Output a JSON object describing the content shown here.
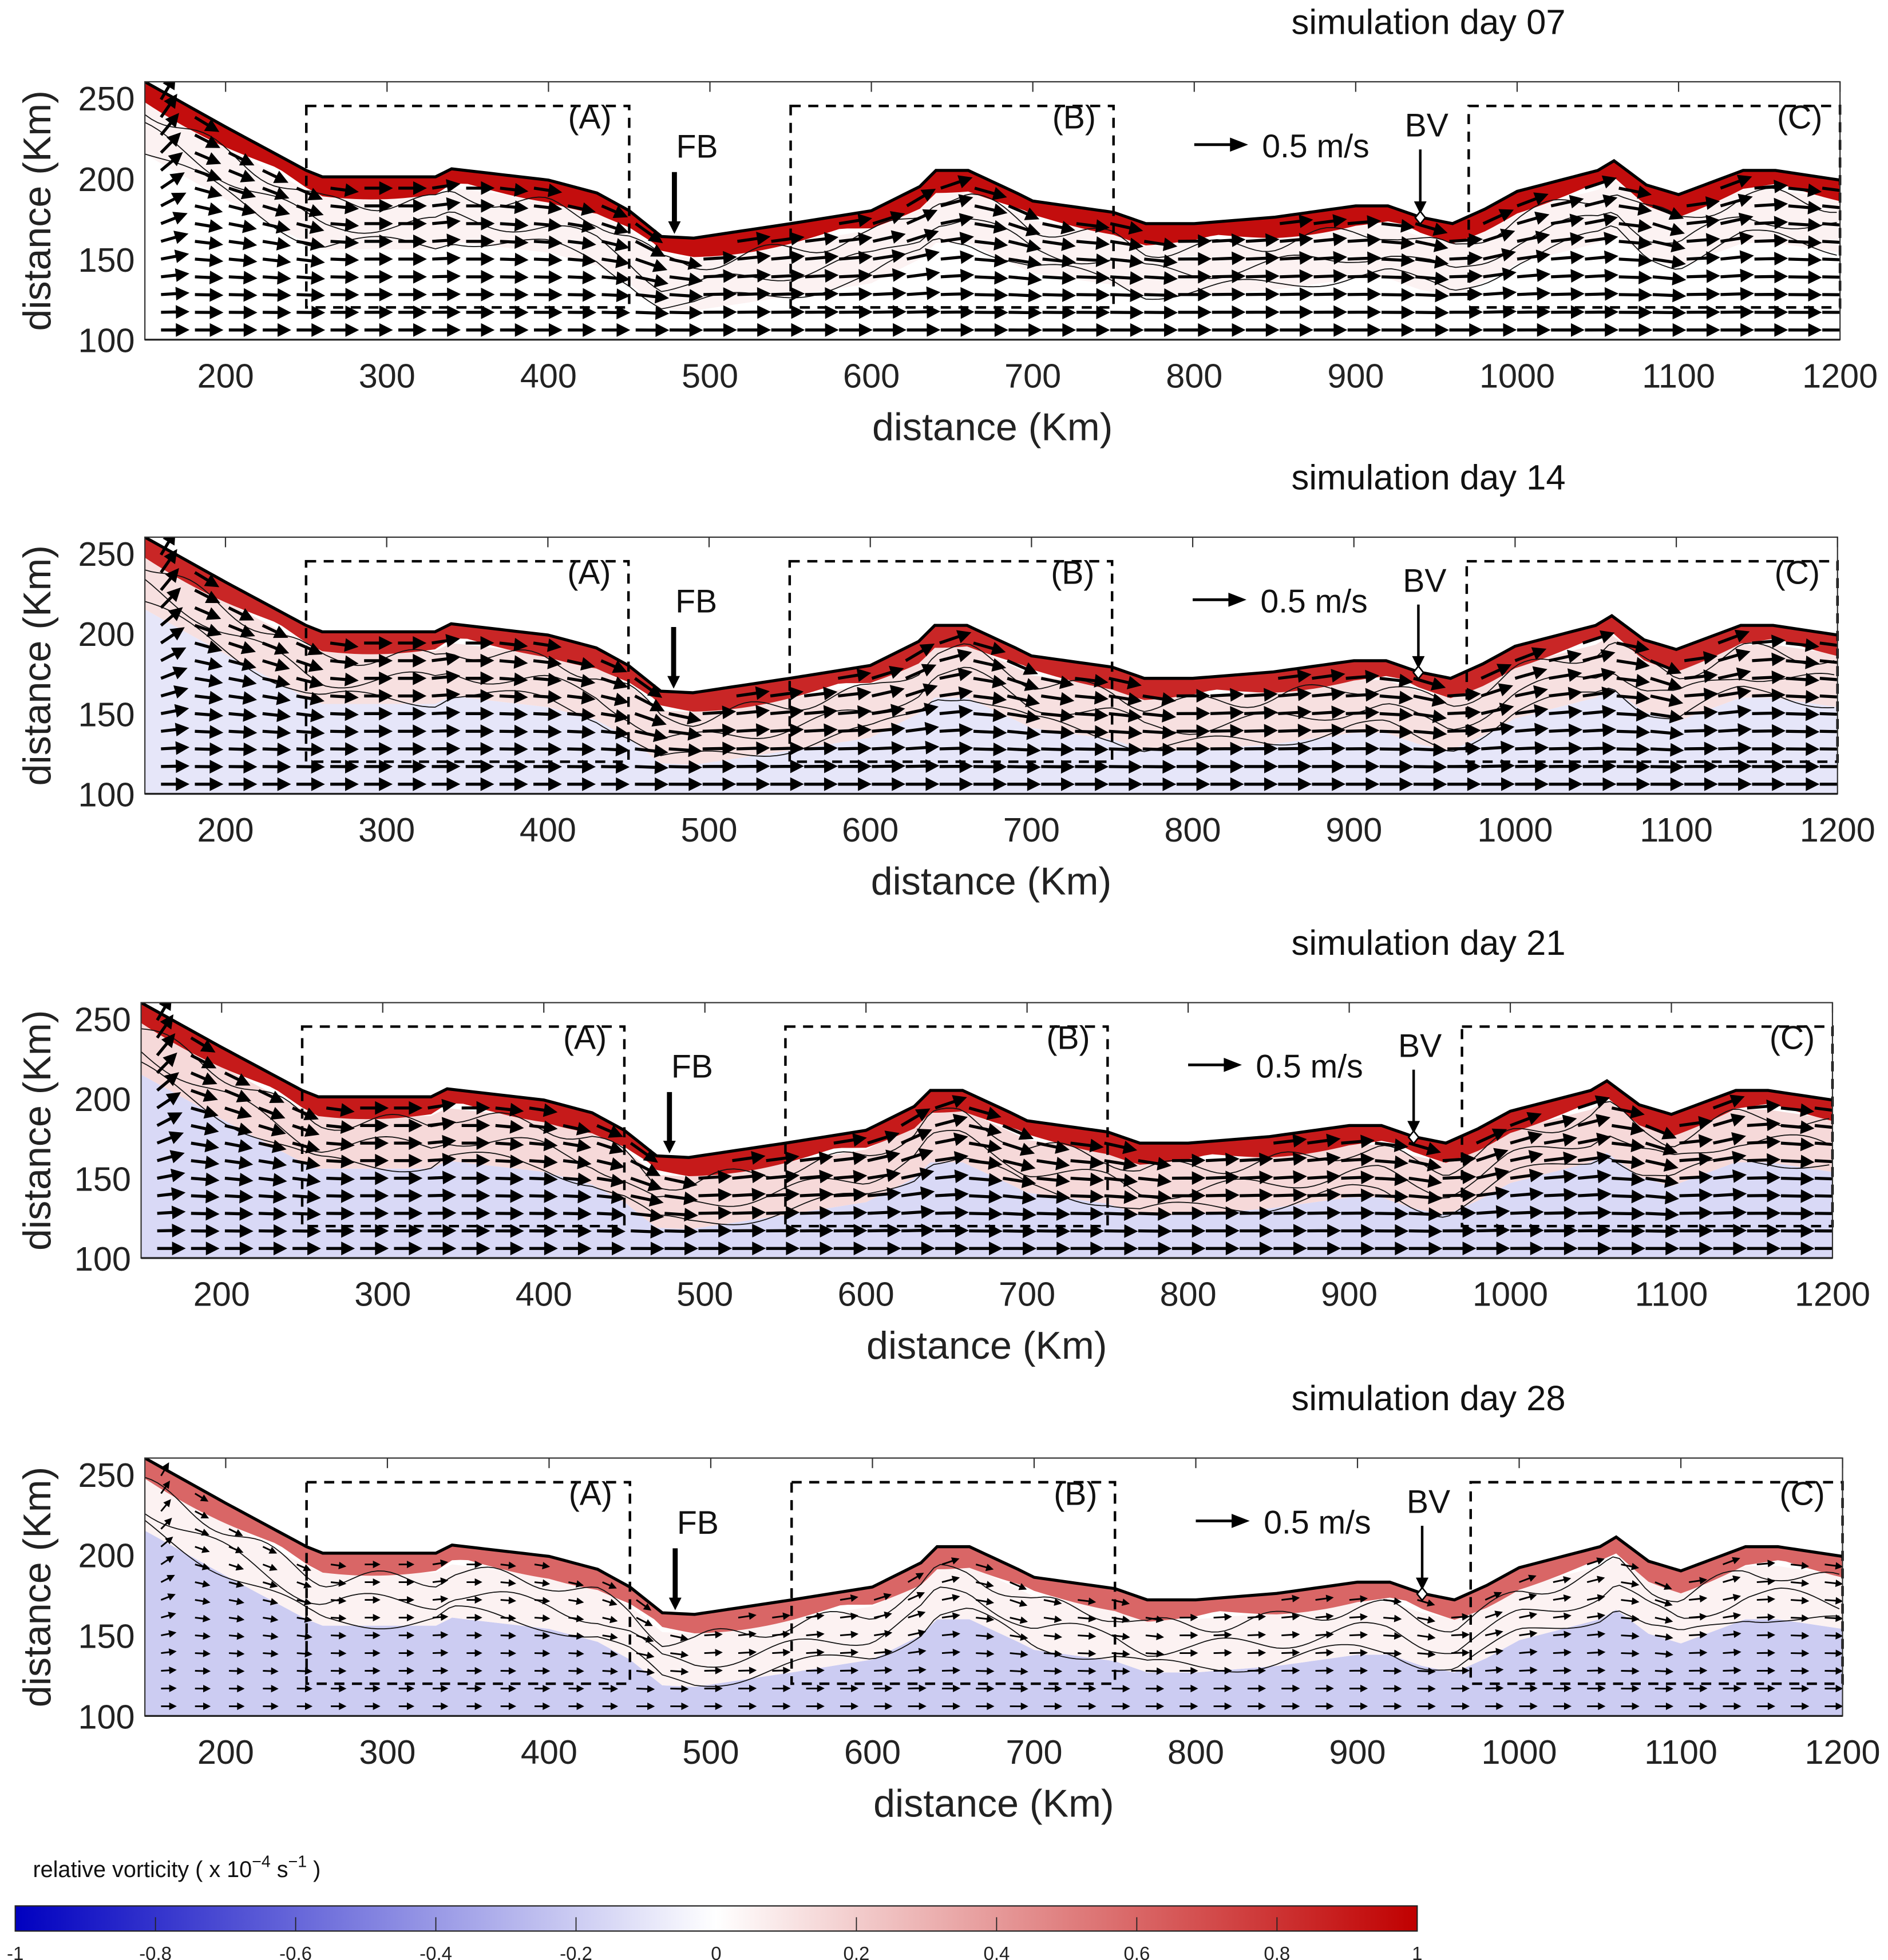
{
  "chart_data": {
    "type": "heatmap",
    "description_field": "relative vorticity with velocity vectors",
    "panels": [
      {
        "title": "simulation day 07",
        "band_intensity": 0.95,
        "interior_tint": 0.05,
        "deep_tint": 0.0,
        "arrow_scale": 1.0
      },
      {
        "title": "simulation day 14",
        "band_intensity": 0.85,
        "interior_tint": 0.12,
        "deep_tint": -0.1,
        "arrow_scale": 1.0
      },
      {
        "title": "simulation day 21",
        "band_intensity": 0.9,
        "interior_tint": 0.15,
        "deep_tint": -0.15,
        "arrow_scale": 1.0
      },
      {
        "title": "simulation day 28",
        "band_intensity": 0.6,
        "interior_tint": 0.05,
        "deep_tint": -0.2,
        "arrow_scale": 0.55
      }
    ],
    "xlabel": "distance (Km)",
    "ylabel": "distance (Km)",
    "xlim": [
      150,
      1200
    ],
    "ylim": [
      100,
      260
    ],
    "xticks": [
      "200",
      "300",
      "400",
      "500",
      "600",
      "700",
      "800",
      "900",
      "1000",
      "1100",
      "1200"
    ],
    "yticks": [
      "100",
      "150",
      "200",
      "250"
    ],
    "coastline": [
      [
        150,
        260
      ],
      [
        200,
        232
      ],
      [
        250,
        205
      ],
      [
        260,
        201
      ],
      [
        330,
        201
      ],
      [
        340,
        206
      ],
      [
        400,
        199
      ],
      [
        430,
        191
      ],
      [
        450,
        180
      ],
      [
        470,
        164
      ],
      [
        490,
        163
      ],
      [
        550,
        172
      ],
      [
        600,
        180
      ],
      [
        630,
        195
      ],
      [
        640,
        205
      ],
      [
        660,
        205
      ],
      [
        690,
        191
      ],
      [
        700,
        186
      ],
      [
        750,
        179
      ],
      [
        770,
        172
      ],
      [
        800,
        172
      ],
      [
        850,
        176
      ],
      [
        900,
        183
      ],
      [
        920,
        183
      ],
      [
        940,
        176
      ],
      [
        960,
        172
      ],
      [
        980,
        181
      ],
      [
        1000,
        192
      ],
      [
        1050,
        205
      ],
      [
        1060,
        211
      ],
      [
        1080,
        196
      ],
      [
        1100,
        190
      ],
      [
        1140,
        205
      ],
      [
        1160,
        205
      ],
      [
        1200,
        199
      ]
    ],
    "boxes": [
      {
        "label": "(A)",
        "x": [
          250,
          450
        ],
        "y": [
          120,
          245
        ]
      },
      {
        "label": "(B)",
        "x": [
          550,
          750
        ],
        "y": [
          120,
          245
        ]
      },
      {
        "label": "(C)",
        "x": [
          970,
          1200
        ],
        "y": [
          120,
          245
        ]
      }
    ],
    "markers": [
      {
        "label": "FB",
        "x": 478
      },
      {
        "label": "BV",
        "x": 940
      }
    ],
    "reference_vector": {
      "label": "0.5 m/s",
      "value": 0.5
    },
    "colorbar": {
      "label_parts": [
        "relative vorticity ( x 10",
        "−4",
        " s",
        "−1",
        " )"
      ],
      "range": [
        -1,
        1
      ],
      "ticks": [
        "-1",
        "-0.8",
        "-0.6",
        "-0.4",
        "-0.2",
        "0",
        "0.2",
        "0.4",
        "0.6",
        "0.8",
        "1"
      ],
      "colors": {
        "min": "#0000C0",
        "mid": "#FFFFFF",
        "max": "#C00000"
      }
    }
  }
}
